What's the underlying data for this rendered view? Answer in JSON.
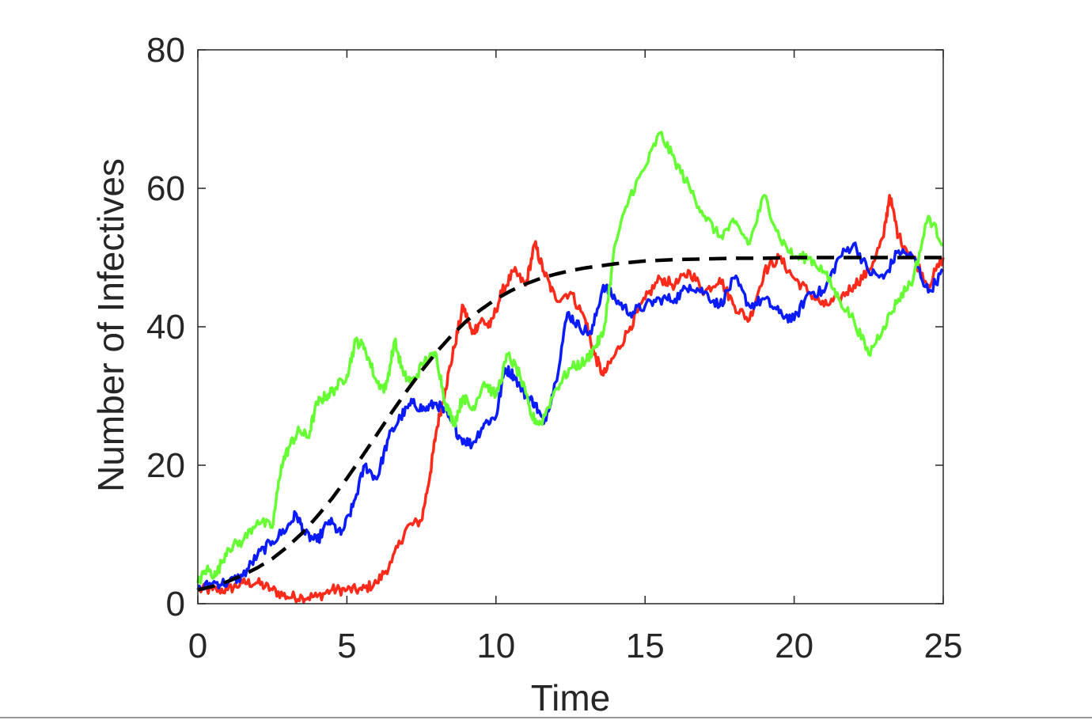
{
  "chart_data": {
    "type": "line",
    "title": "",
    "xlabel": "Time",
    "ylabel": "Number of Infectives",
    "xlim": [
      0,
      25
    ],
    "ylim": [
      0,
      80
    ],
    "xticks": [
      0,
      5,
      10,
      15,
      20,
      25
    ],
    "yticks": [
      0,
      20,
      40,
      60,
      80
    ],
    "grid": false,
    "legend": "none",
    "series": [
      {
        "color": "#ff2a1a",
        "style": "solid",
        "x": [
          0,
          0.5,
          1,
          1.5,
          2,
          2.5,
          3,
          3.5,
          4,
          4.5,
          5,
          5.5,
          6,
          6.5,
          7,
          7.5,
          7.8,
          8,
          8.3,
          8.6,
          8.9,
          9.2,
          9.5,
          9.8,
          10.2,
          10.6,
          11,
          11.3,
          11.6,
          12,
          12.5,
          13,
          13.3,
          13.6,
          14,
          14.5,
          15,
          15.5,
          16,
          16.5,
          17,
          17.5,
          18,
          18.5,
          19,
          19.5,
          20,
          20.5,
          21,
          21.5,
          22,
          22.5,
          23,
          23.2,
          23.5,
          24,
          24.5,
          25
        ],
        "y": [
          2,
          2,
          2,
          3,
          3,
          2,
          1,
          1,
          1,
          2,
          2,
          2,
          3,
          6,
          11,
          12,
          19,
          25,
          31,
          37,
          43,
          39,
          41,
          40,
          45,
          48,
          46,
          52,
          48,
          44,
          45,
          41,
          36,
          33,
          36,
          40,
          44,
          47,
          46,
          48,
          45,
          47,
          43,
          41,
          48,
          50,
          47,
          45,
          43,
          44,
          46,
          48,
          53,
          59,
          53,
          50,
          46,
          50
        ]
      },
      {
        "color": "#0a1cff",
        "style": "solid",
        "x": [
          0,
          0.5,
          1,
          1.5,
          2,
          2.5,
          3,
          3.3,
          3.6,
          4,
          4.4,
          4.8,
          5.2,
          5.6,
          6,
          6.4,
          6.8,
          7.2,
          7.6,
          8,
          8.4,
          8.8,
          9.2,
          9.6,
          10,
          10.3,
          10.6,
          11,
          11.3,
          11.6,
          12,
          12.4,
          12.8,
          13.2,
          13.6,
          14,
          14.5,
          15,
          15.5,
          16,
          16.5,
          17,
          17.5,
          18,
          18.5,
          19,
          19.5,
          20,
          20.5,
          21,
          21.5,
          22,
          22.5,
          23,
          23.5,
          24,
          24.5,
          25
        ],
        "y": [
          2,
          3,
          3,
          4,
          7,
          9,
          11,
          13,
          10,
          9,
          12,
          10,
          14,
          20,
          18,
          24,
          27,
          29,
          28,
          29,
          27,
          24,
          23,
          26,
          27,
          34,
          33,
          30,
          29,
          26,
          32,
          42,
          40,
          39,
          46,
          44,
          42,
          43,
          44,
          44,
          46,
          45,
          43,
          47,
          43,
          44,
          42,
          41,
          45,
          45,
          50,
          52,
          48,
          47,
          51,
          50,
          45,
          48
        ]
      },
      {
        "color": "#66ff33",
        "style": "solid",
        "x": [
          0,
          0.3,
          0.6,
          1,
          1.5,
          2,
          2.5,
          2.8,
          3.1,
          3.4,
          3.7,
          4,
          4.3,
          4.6,
          5,
          5.3,
          5.6,
          6,
          6.3,
          6.6,
          6.9,
          7.2,
          7.6,
          8,
          8.3,
          8.6,
          8.9,
          9.2,
          9.6,
          10,
          10.4,
          10.8,
          11.2,
          11.5,
          12,
          12.5,
          13,
          13.3,
          13.6,
          14,
          14.5,
          15,
          15.5,
          16,
          16.5,
          17,
          17.5,
          18,
          18.5,
          19,
          19.5,
          20,
          20.5,
          21,
          21.5,
          22,
          22.5,
          23,
          23.5,
          24,
          24.5,
          25
        ],
        "y": [
          3,
          5,
          4,
          8,
          9,
          12,
          11,
          20,
          23,
          25,
          24,
          29,
          30,
          31,
          33,
          38,
          37,
          32,
          31,
          38,
          33,
          32,
          35,
          36,
          29,
          26,
          30,
          28,
          32,
          30,
          36,
          33,
          27,
          26,
          31,
          34,
          35,
          37,
          39,
          52,
          59,
          63,
          68,
          64,
          60,
          56,
          53,
          55,
          52,
          59,
          53,
          50,
          50,
          48,
          44,
          41,
          36,
          40,
          44,
          47,
          56,
          52
        ]
      },
      {
        "color": "#000000",
        "style": "dashed",
        "x": [
          0,
          0.5,
          1,
          1.5,
          2,
          2.5,
          3,
          3.5,
          4,
          4.5,
          5,
          5.5,
          6,
          6.5,
          7,
          7.5,
          8,
          8.5,
          9,
          9.5,
          10,
          10.5,
          11,
          11.5,
          12,
          12.5,
          13,
          13.5,
          14,
          14.5,
          15,
          16,
          17,
          18,
          19,
          20,
          21,
          22,
          23,
          24,
          25
        ],
        "y": [
          2.0,
          2.5,
          3.2,
          4.1,
          5.2,
          6.5,
          8.2,
          10.2,
          12.6,
          15.2,
          18.1,
          21.2,
          24.4,
          27.6,
          30.7,
          33.6,
          36.3,
          38.7,
          40.8,
          42.5,
          44.0,
          45.2,
          46.2,
          47.0,
          47.6,
          48.1,
          48.5,
          48.8,
          49.1,
          49.3,
          49.5,
          49.7,
          49.8,
          49.9,
          49.9,
          50.0,
          50.0,
          50.0,
          50.0,
          50.0,
          50.0
        ]
      }
    ]
  }
}
